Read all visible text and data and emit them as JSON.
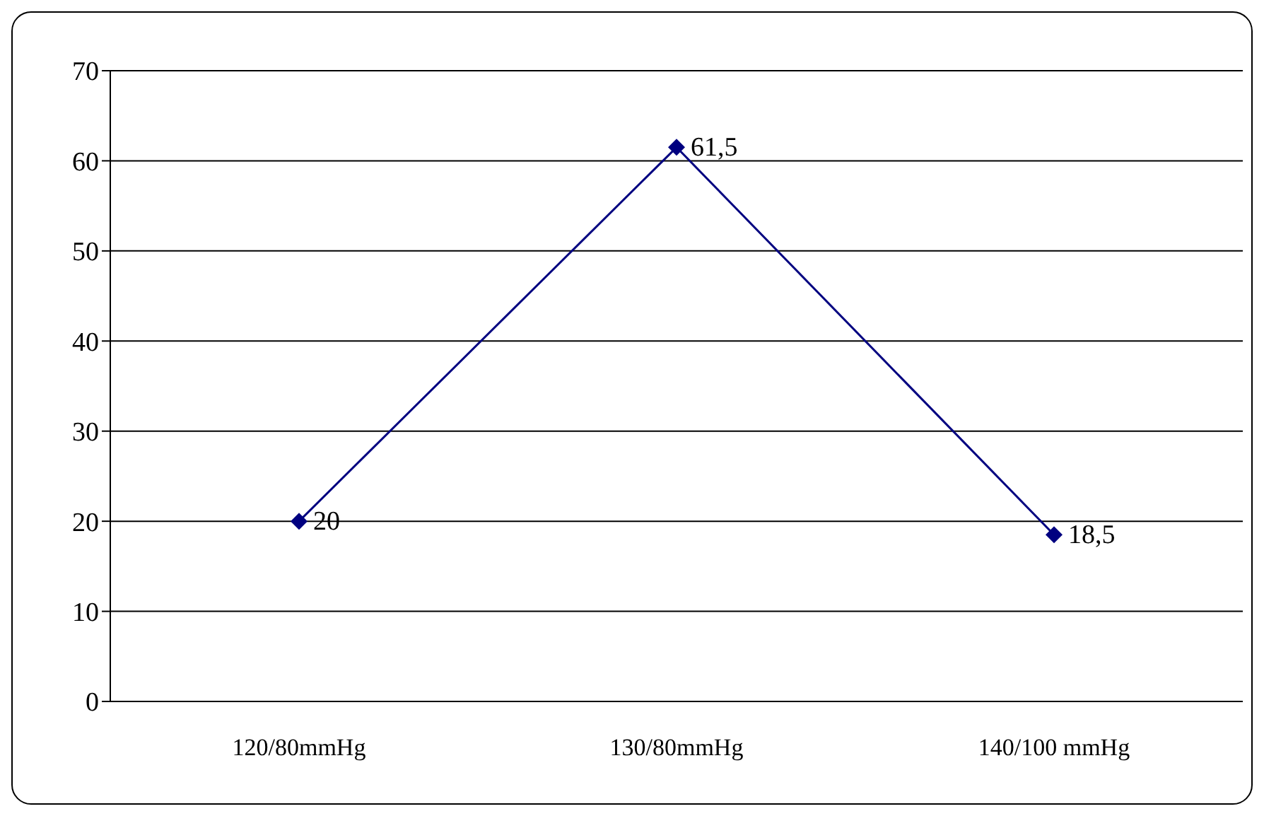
{
  "chart_data": {
    "type": "line",
    "categories": [
      "120/80mmHg",
      "130/80mmHg",
      "140/100 mmHg"
    ],
    "values": [
      20,
      61.5,
      18.5
    ],
    "value_labels": [
      "20",
      "61,5",
      "18,5"
    ],
    "color": "#000080",
    "ylim": [
      0,
      70
    ],
    "yticks": [
      0,
      10,
      20,
      30,
      40,
      50,
      60,
      70
    ],
    "grid": "y",
    "marker": "diamond",
    "line_style": "solid"
  }
}
